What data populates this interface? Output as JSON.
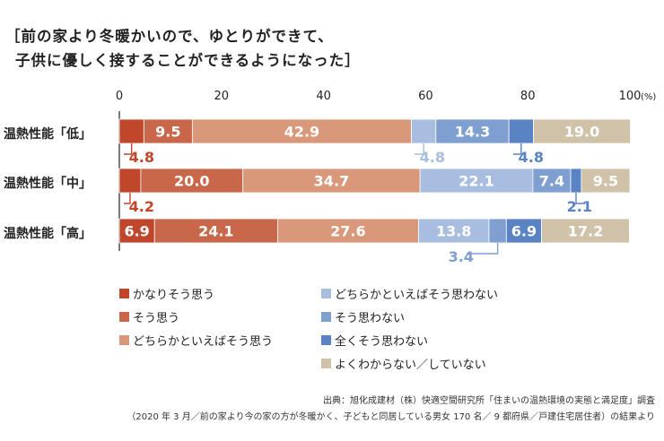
{
  "title": {
    "line1": "［前の家より冬暖かいので、ゆとりができて、",
    "line2": "子供に優しく接することができるようになった］"
  },
  "chart_data": {
    "type": "bar",
    "orientation": "horizontal",
    "stacked": true,
    "x_ticks": [
      "0",
      "20",
      "40",
      "60",
      "80",
      "100"
    ],
    "x_unit": "(%)",
    "xlim": [
      0,
      100
    ],
    "grid": false,
    "legend_position": "bottom",
    "categories": [
      "温熱性能「低」",
      "温熱性能「中」",
      "温熱性能「高」"
    ],
    "series": [
      {
        "name": "かなりそう思う",
        "color": "#c0462c",
        "values": [
          4.8,
          4.2,
          6.9
        ],
        "labels": [
          "4.8",
          "4.2",
          "6.9"
        ]
      },
      {
        "name": "そう思う",
        "color": "#c9674a",
        "values": [
          9.5,
          20.0,
          24.1
        ],
        "labels": [
          "9.5",
          "20.0",
          "24.1"
        ]
      },
      {
        "name": "どちらかといえばそう思う",
        "color": "#d9987a",
        "values": [
          42.9,
          34.7,
          27.6
        ],
        "labels": [
          "42.9",
          "34.7",
          "27.6"
        ]
      },
      {
        "name": "どちらかといえばそう思わない",
        "color": "#a9bde0",
        "values": [
          4.8,
          22.1,
          13.8
        ],
        "labels": [
          "4.8",
          "22.1",
          "13.8"
        ]
      },
      {
        "name": "そう思わない",
        "color": "#7e9fd0",
        "values": [
          14.3,
          7.4,
          3.4
        ],
        "labels": [
          "14.3",
          "7.4",
          "3.4"
        ]
      },
      {
        "name": "全くそう思わない",
        "color": "#5a83c4",
        "values": [
          4.8,
          2.1,
          6.9
        ],
        "labels": [
          "4.8",
          "2.1",
          "6.9"
        ]
      },
      {
        "name": "よくわからない／していない",
        "color": "#cfc2a8",
        "values": [
          19.0,
          9.5,
          17.2
        ],
        "labels": [
          "19.0",
          "9.5",
          "17.2"
        ]
      }
    ]
  },
  "source": {
    "line1": "出典：旭化成建材（株）快適空間研究所「住まいの温熱環境の実態と満足度」調査",
    "line2": "（2020 年 3 月／前の家より今の家の方が冬暖かく、子どもと同居している男女 170 名／ 9 都府県／戸建住宅居住者）の結果より"
  }
}
